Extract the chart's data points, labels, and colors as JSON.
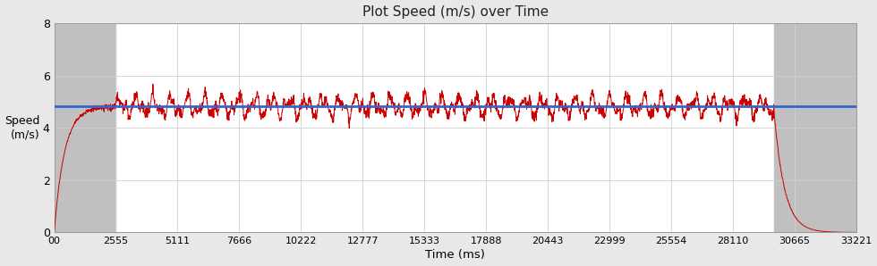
{
  "title": "Plot Speed (m/s) over Time",
  "xlabel": "Time (ms)",
  "ylabel": "Speed\n(m/s)",
  "xlim": [
    0,
    33221
  ],
  "ylim": [
    0,
    8
  ],
  "yticks": [
    0,
    2,
    4,
    6,
    8
  ],
  "xtick_labels": [
    "00",
    "2555",
    "5111",
    "7666",
    "10222",
    "12777",
    "15333",
    "17888",
    "20443",
    "22999",
    "25554",
    "28110",
    "30665",
    "33221"
  ],
  "xtick_values": [
    0,
    2555,
    5111,
    7666,
    10222,
    12777,
    15333,
    17888,
    20443,
    22999,
    25554,
    28110,
    30665,
    33221
  ],
  "avg_speed": 4.82,
  "speed_color": "#cc0000",
  "avg_color": "#3366cc",
  "bg_color": "#e8e8e8",
  "plot_bg_color": "#ffffff",
  "gray_region_color": "#c0c0c0",
  "gray_start1": 0,
  "gray_end1": 2555,
  "gray_start2": 29800,
  "gray_end2": 33221,
  "ramp_end": 2555,
  "steady_end": 29800,
  "decel_end": 33221
}
